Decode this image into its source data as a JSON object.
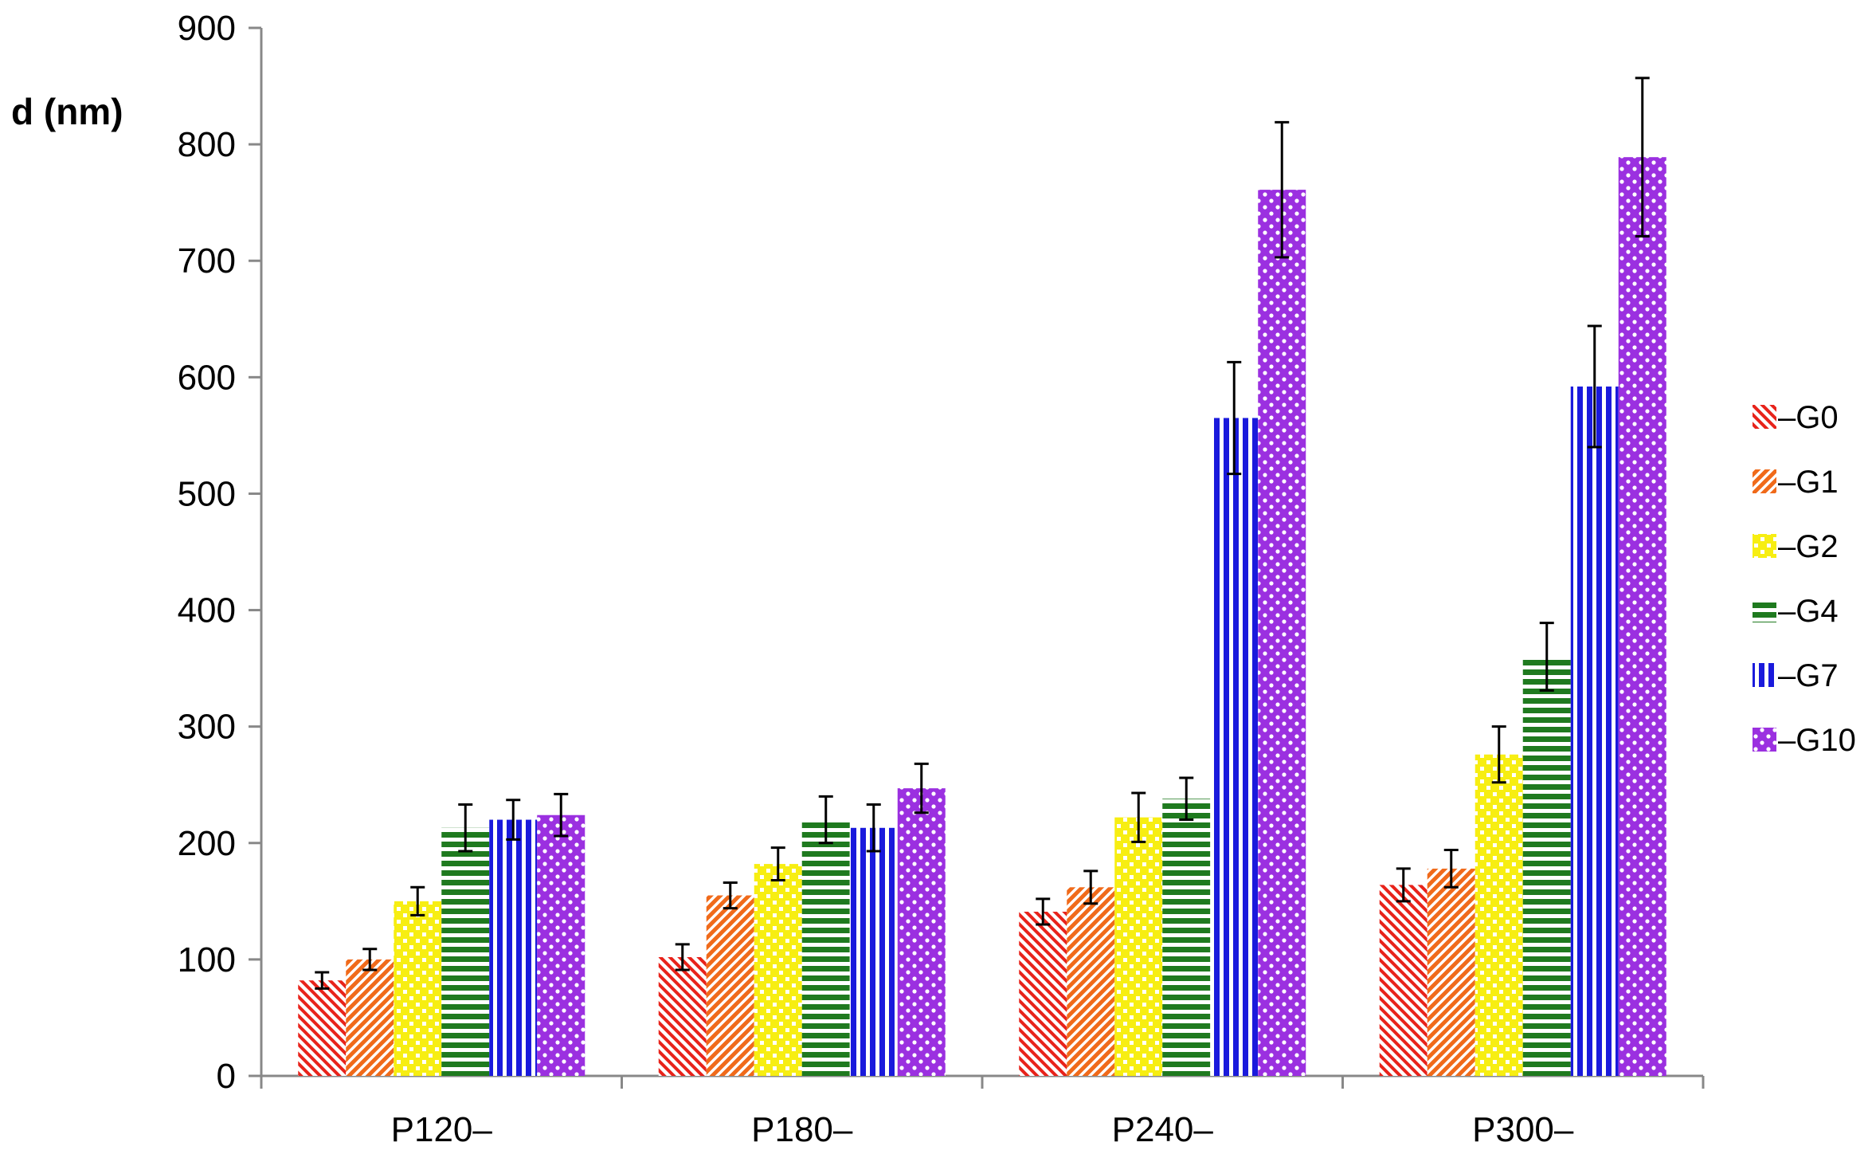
{
  "chart_data": {
    "type": "bar",
    "title": "",
    "xlabel": "",
    "ylabel": "d (nm)",
    "ylim": [
      0,
      900
    ],
    "yticks": [
      0,
      100,
      200,
      300,
      400,
      500,
      600,
      700,
      800,
      900
    ],
    "ytick_labels": [
      "0",
      "100",
      "200",
      "300",
      "400",
      "500",
      "600",
      "700",
      "800",
      "900"
    ],
    "grid": false,
    "legend_position": "right",
    "categories": [
      "P120–",
      "P180–",
      "P240–",
      "P300–"
    ],
    "series": [
      {
        "name": "–G0",
        "color": "#e8231b",
        "pattern": "diag-down",
        "values": [
          82,
          102,
          141,
          164
        ],
        "errors": [
          7,
          11,
          11,
          14
        ]
      },
      {
        "name": "–G1",
        "color": "#f06a1a",
        "pattern": "diag-up",
        "values": [
          100,
          155,
          162,
          178
        ],
        "errors": [
          9,
          11,
          14,
          16
        ]
      },
      {
        "name": "–G2",
        "color": "#f7ee12",
        "pattern": "check",
        "values": [
          150,
          182,
          222,
          276
        ],
        "errors": [
          12,
          14,
          21,
          24
        ]
      },
      {
        "name": "–G4",
        "color": "#1f7a1f",
        "pattern": "horiz",
        "values": [
          213,
          220,
          238,
          360
        ],
        "errors": [
          20,
          20,
          18,
          29
        ]
      },
      {
        "name": "–G7",
        "color": "#1a1adc",
        "pattern": "vert",
        "values": [
          220,
          213,
          565,
          592
        ],
        "errors": [
          17,
          20,
          48,
          52
        ]
      },
      {
        "name": "–G10",
        "color": "#9b30e0",
        "pattern": "dots",
        "values": [
          224,
          247,
          761,
          789
        ],
        "errors": [
          18,
          21,
          58,
          68
        ]
      }
    ]
  }
}
